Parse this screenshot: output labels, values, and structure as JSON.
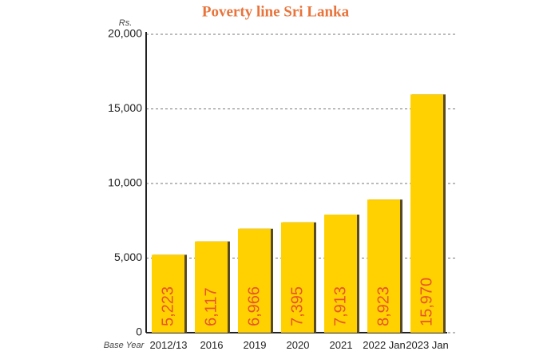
{
  "chart_data": {
    "type": "bar",
    "title": "Poverty line Sri Lanka",
    "y_unit": "Rs.",
    "x_label": "Base Year",
    "categories": [
      "2012/13",
      "2016",
      "2019",
      "2020",
      "2021",
      "2022 Jan",
      "2023 Jan"
    ],
    "values": [
      5223,
      6117,
      6966,
      7395,
      7913,
      8923,
      15970
    ],
    "value_labels": [
      "5,223",
      "6,117",
      "6,966",
      "7,395",
      "7,913",
      "8,923",
      "15,970"
    ],
    "color": "#ffd100",
    "label_color": "#e8552a",
    "ylim": [
      0,
      20000
    ],
    "yticks": [
      0,
      {
        "value": 5000,
        "label": "5,000"
      },
      {
        "value": 10000,
        "label": "10,000"
      },
      {
        "value": 15000,
        "label": "15,000"
      },
      {
        "value": 20000,
        "label": "20,000"
      }
    ],
    "grid": true
  }
}
